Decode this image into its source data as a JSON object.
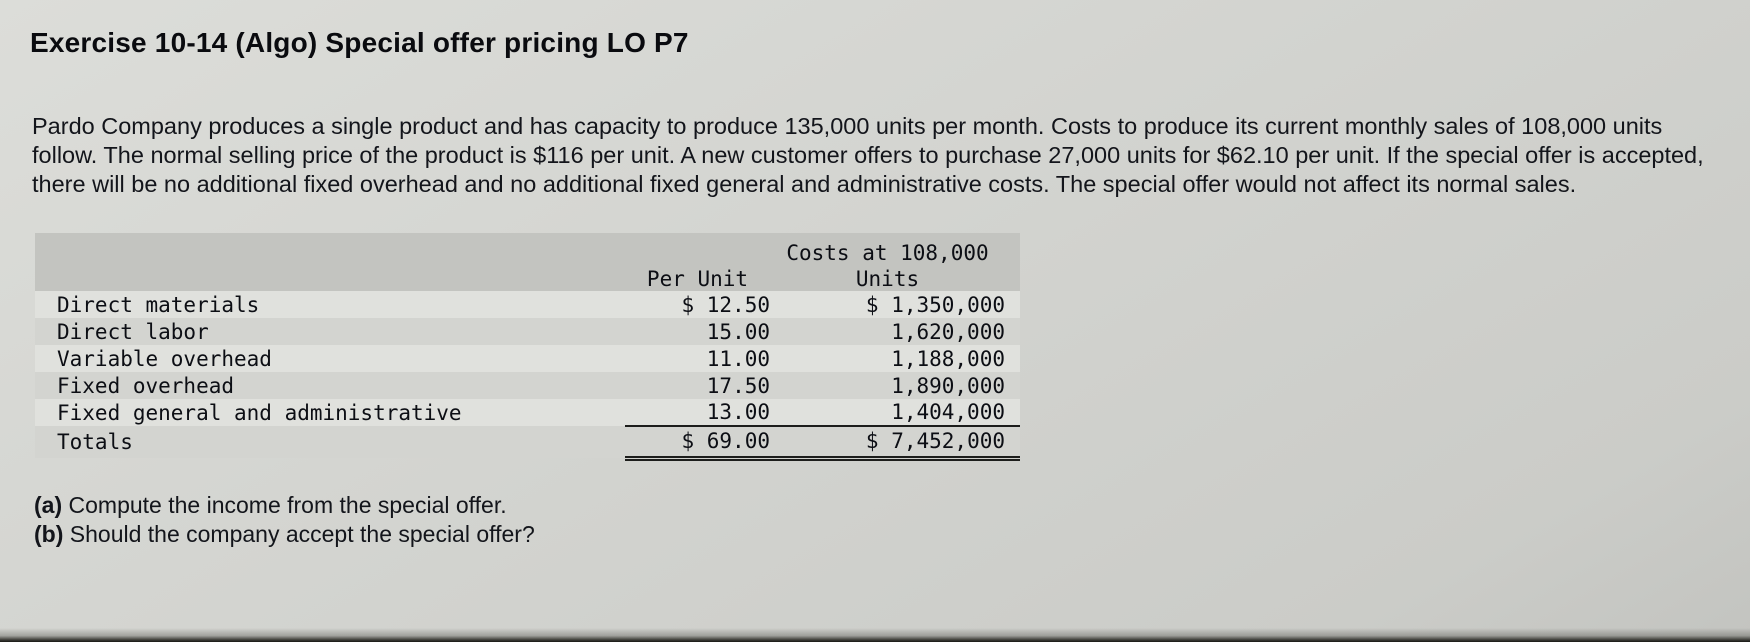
{
  "header": {
    "title": "Exercise 10-14 (Algo) Special offer pricing LO P7"
  },
  "problem": {
    "statement": "Pardo Company produces a single product and has capacity to produce 135,000 units per month. Costs to produce its current monthly sales of 108,000 units follow. The normal selling price of the product is $116 per unit. A new customer offers to purchase 27,000 units for $62.10 per unit. If the special offer is accepted, there will be no additional fixed overhead and no additional fixed general and administrative costs. The special offer would not affect its normal sales."
  },
  "cost_table": {
    "columns": {
      "per_unit_header": "Per Unit",
      "costs_header_line1": "Costs at 108,000",
      "costs_header_line2": "Units"
    },
    "rows": [
      {
        "label": "Direct materials",
        "per_unit": "$ 12.50",
        "total": "$ 1,350,000"
      },
      {
        "label": "Direct labor",
        "per_unit": "15.00",
        "total": "1,620,000"
      },
      {
        "label": "Variable overhead",
        "per_unit": "11.00",
        "total": "1,188,000"
      },
      {
        "label": "Fixed overhead",
        "per_unit": "17.50",
        "total": "1,890,000"
      },
      {
        "label": "Fixed general and administrative",
        "per_unit": "13.00",
        "total": "1,404,000"
      }
    ],
    "totals": {
      "label": "Totals",
      "per_unit": "$ 69.00",
      "total": "$ 7,452,000"
    }
  },
  "questions": {
    "a_label": "(a)",
    "a_text": "Compute the income from the special offer.",
    "b_label": "(b)",
    "b_text": "Should the company accept the special offer?"
  }
}
